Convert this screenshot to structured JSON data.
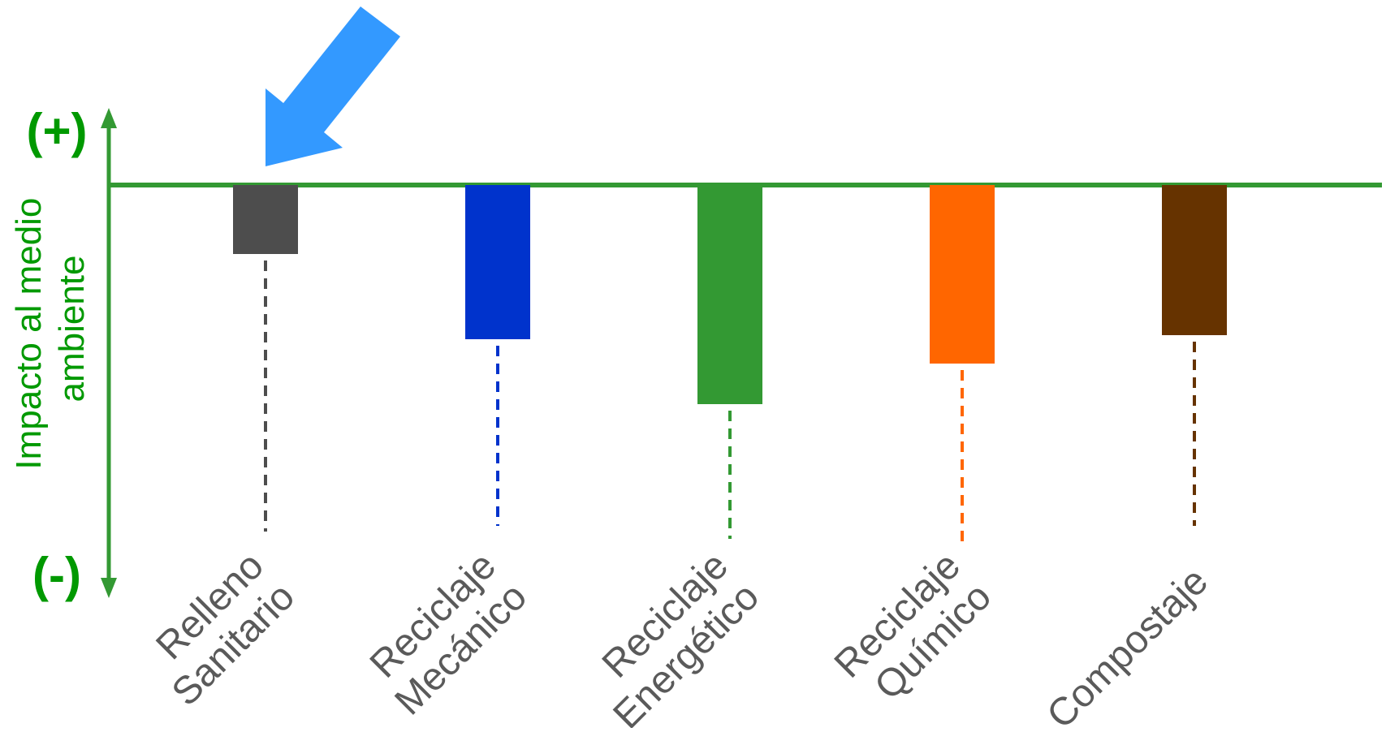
{
  "chart_data": {
    "type": "bar",
    "categories": [
      [
        "Relleno",
        "Sanitario"
      ],
      [
        "Reciclaje",
        "Mecánico"
      ],
      [
        "Reciclaje",
        "Energético"
      ],
      [
        "Reciclaje",
        "Químico"
      ],
      [
        "Compostaje"
      ]
    ],
    "values": [
      -1.7,
      -3.8,
      -5.4,
      -4.4,
      -3.7
    ],
    "colors": [
      "#4d4d4d",
      "#0033cc",
      "#339933",
      "#ff6600",
      "#663300"
    ],
    "ylabel_lines": [
      "Impacto al medio",
      "ambiente"
    ],
    "positive_label": "(+)",
    "negative_label": "(-)",
    "highlighted_category": 0,
    "axis_color": "#339933",
    "pole_label_color": "#009900",
    "label_color": "#5a5a5a",
    "arrow_color": "#3399ff",
    "ylim": [
      -8,
      1
    ],
    "grid": false,
    "legend": "none"
  }
}
